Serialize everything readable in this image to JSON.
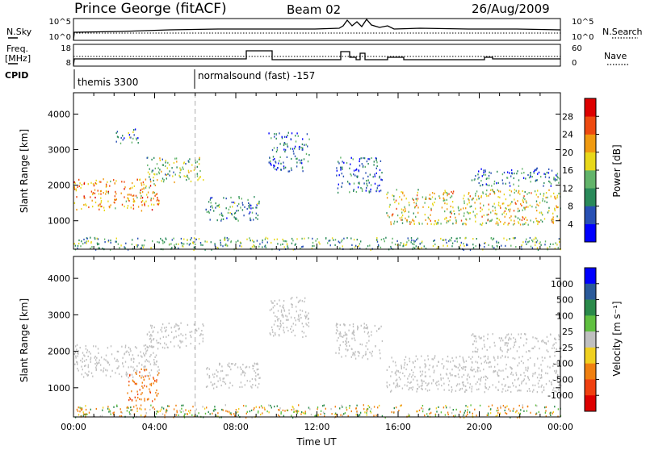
{
  "header": {
    "station": "Prince George (fitACF)",
    "beam": "Beam 02",
    "date": "26/Aug/2009"
  },
  "status_panels": {
    "nsky_label": "N.Sky",
    "nsky_ticks": [
      "10^5",
      "10^0"
    ],
    "nsearch_label": "N.Search",
    "nsearch_ticks": [
      "10^5",
      "10^0"
    ],
    "freq_label_line1": "Freq.",
    "freq_label_line2": "[MHz]",
    "freq_ticks": [
      "18",
      "8"
    ],
    "nave_label": "Nave",
    "nave_ticks": [
      "60",
      "0"
    ],
    "cpid_label": "CPID",
    "cpid_segments": [
      {
        "name": "themis 3300",
        "start_hour": 0
      },
      {
        "name": "normalsound (fast) -157",
        "start_hour": 6
      }
    ]
  },
  "chart_data": [
    {
      "type": "heatmap",
      "title": "",
      "ylabel": "Slant Range [km]",
      "xlabel": "",
      "xlim": [
        0,
        24
      ],
      "ylim": [
        200,
        4600
      ],
      "yticks": [
        1000,
        2000,
        3000,
        4000
      ],
      "colorbar": {
        "label": "Power [dB]",
        "ticks": [
          "4",
          "8",
          "12",
          "16",
          "20",
          "24",
          "28"
        ],
        "range": [
          0,
          32
        ],
        "colors": [
          "#0000ff",
          "#2850b4",
          "#2a8a5a",
          "#62b46a",
          "#e8d81a",
          "#f09a10",
          "#ee4a10",
          "#dd0000"
        ]
      },
      "echo_regions": [
        {
          "t": [
            0.0,
            4.2
          ],
          "r": [
            1300,
            2200
          ],
          "level": 22
        },
        {
          "t": [
            3.6,
            6.4
          ],
          "r": [
            2100,
            2800
          ],
          "level": 14
        },
        {
          "t": [
            2.0,
            3.2
          ],
          "r": [
            3200,
            3600
          ],
          "level": 10
        },
        {
          "t": [
            6.5,
            9.2
          ],
          "r": [
            1000,
            1700
          ],
          "level": 10
        },
        {
          "t": [
            9.6,
            11.6
          ],
          "r": [
            2400,
            3500
          ],
          "level": 8
        },
        {
          "t": [
            12.9,
            15.2
          ],
          "r": [
            1800,
            2800
          ],
          "level": 8
        },
        {
          "t": [
            15.4,
            24.0
          ],
          "r": [
            900,
            1900
          ],
          "level": 18
        },
        {
          "t": [
            19.6,
            24.0
          ],
          "r": [
            2000,
            2500
          ],
          "level": 8
        },
        {
          "t": [
            0.0,
            24.0
          ],
          "r": [
            200,
            550
          ],
          "level": 12
        }
      ]
    },
    {
      "type": "heatmap",
      "title": "",
      "ylabel": "Slant Range [km]",
      "xlabel": "Time UT",
      "xlim": [
        0,
        24
      ],
      "ylim": [
        200,
        4600
      ],
      "xticks": [
        "00:00",
        "04:00",
        "08:00",
        "12:00",
        "16:00",
        "20:00",
        "00:00"
      ],
      "yticks": [
        1000,
        2000,
        3000,
        4000
      ],
      "colorbar": {
        "label": "Velocity [m s⁻¹]",
        "ticks": [
          "1000",
          "500",
          "100",
          "25",
          "-25",
          "-100",
          "-500",
          "-1000"
        ],
        "colors": [
          "#0000ff",
          "#2a5a9a",
          "#2a8a4a",
          "#60c040",
          "#c0c0c0",
          "#f0d020",
          "#f08010",
          "#f04010",
          "#dd0000"
        ]
      },
      "echo_regions": [
        {
          "t": [
            0.0,
            4.2
          ],
          "r": [
            1300,
            2200
          ],
          "velocity": 0
        },
        {
          "t": [
            3.6,
            6.4
          ],
          "r": [
            2100,
            2800
          ],
          "velocity": 0
        },
        {
          "t": [
            2.6,
            4.2
          ],
          "r": [
            650,
            1550
          ],
          "velocity": -400
        },
        {
          "t": [
            6.5,
            9.2
          ],
          "r": [
            1000,
            1700
          ],
          "velocity": 0
        },
        {
          "t": [
            9.6,
            11.6
          ],
          "r": [
            2400,
            3500
          ],
          "velocity": 0
        },
        {
          "t": [
            12.9,
            15.2
          ],
          "r": [
            1800,
            2800
          ],
          "velocity": 0
        },
        {
          "t": [
            15.4,
            24.0
          ],
          "r": [
            900,
            1900
          ],
          "velocity": 0
        },
        {
          "t": [
            19.6,
            24.0
          ],
          "r": [
            2000,
            2500
          ],
          "velocity": 0
        },
        {
          "t": [
            0.0,
            24.0
          ],
          "r": [
            200,
            550
          ],
          "velocity": -60
        }
      ]
    }
  ]
}
